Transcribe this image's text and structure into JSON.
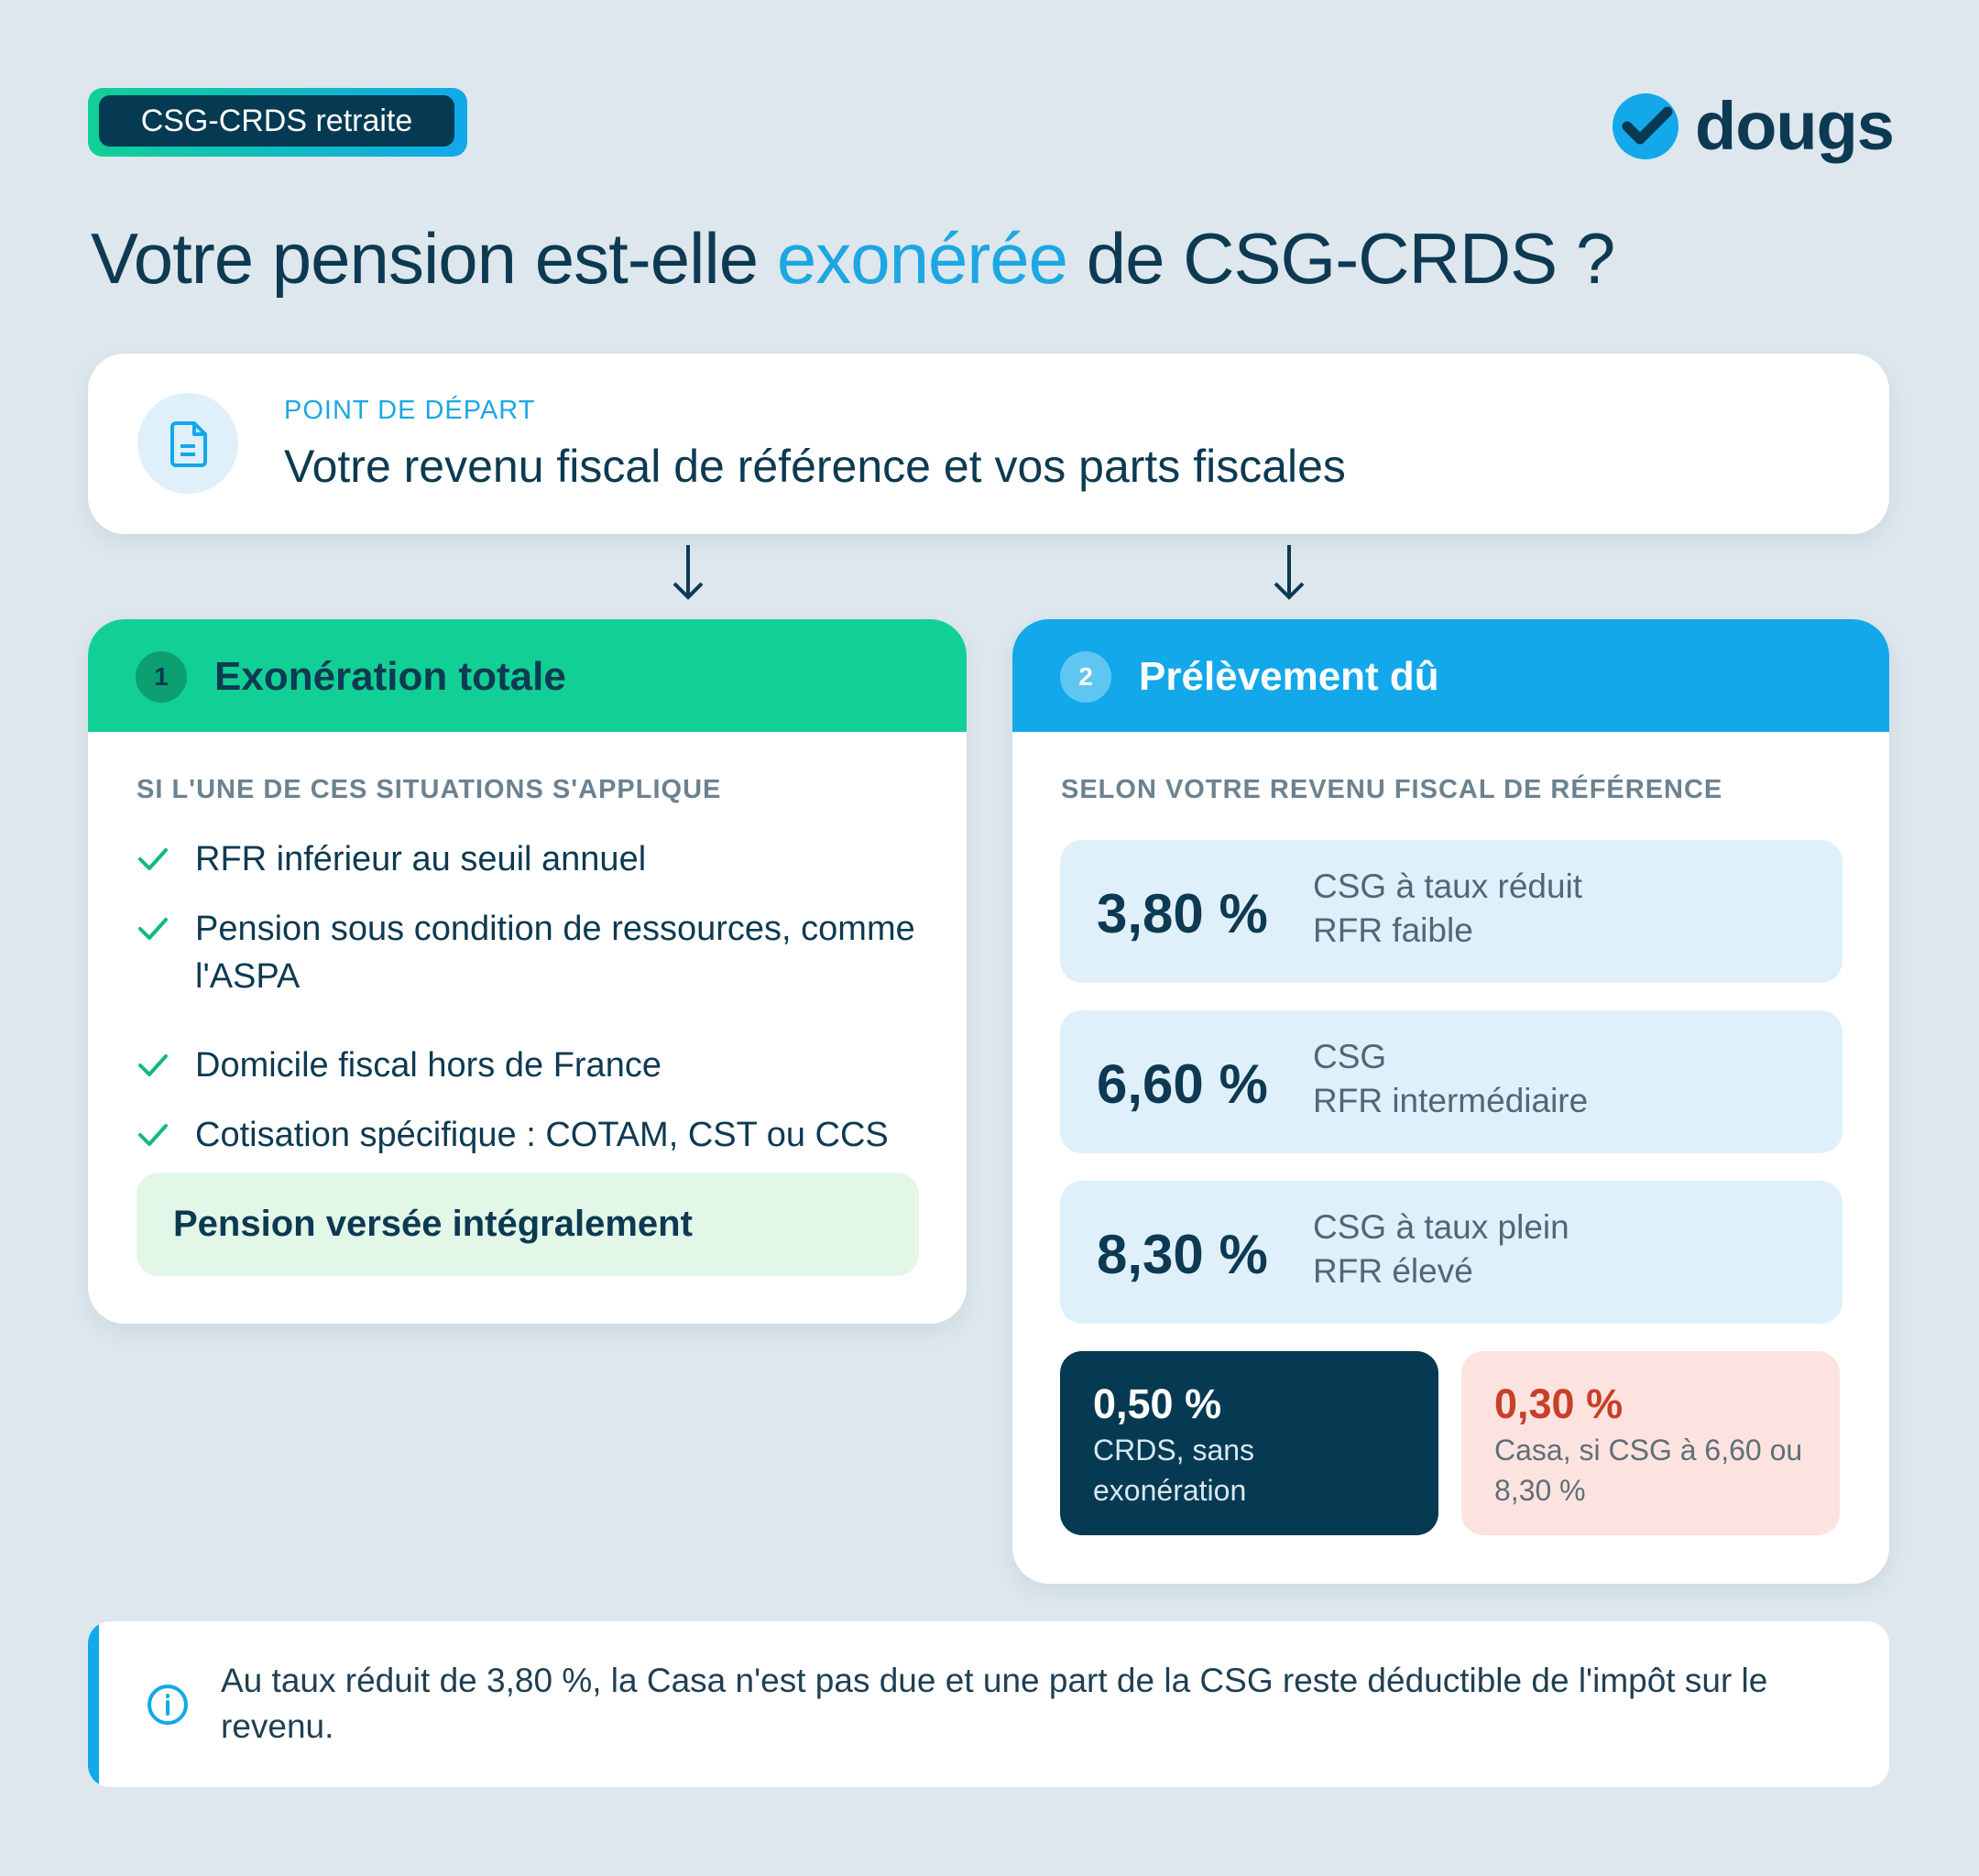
{
  "badge": "CSG-CRDS retraite",
  "logo": "dougs",
  "title": {
    "before": "Votre pension est-elle ",
    "highlight": "exonérée",
    "after": " de CSG-CRDS ?"
  },
  "start": {
    "label": "POINT DE DÉPART",
    "text": "Votre revenu fiscal de référence et vos parts fiscales"
  },
  "card1": {
    "number": "1",
    "title": "Exonération totale",
    "subtitle": "SI L'UNE DE CES SITUATIONS S'APPLIQUE",
    "items": [
      "RFR inférieur au seuil annuel",
      "Pension sous condition de ressources, comme l'ASPA",
      "Domicile fiscal hors de France",
      "Cotisation spécifique : COTAM, CST ou CCS"
    ],
    "footer": "Pension versée intégralement"
  },
  "card2": {
    "number": "2",
    "title": "Prélèvement dû",
    "subtitle": "SELON VOTRE REVENU FISCAL DE RÉFÉRENCE",
    "rates": [
      {
        "rate": "3,80 %",
        "line1": "CSG à taux réduit",
        "line2": "RFR faible"
      },
      {
        "rate": "6,60 %",
        "line1": "CSG",
        "line2": "RFR intermédiaire"
      },
      {
        "rate": "8,30 %",
        "line1": "CSG à taux plein",
        "line2": "RFR élevé"
      }
    ],
    "extras": [
      {
        "rate": "0,50 %",
        "text": "CRDS, sans exonération"
      },
      {
        "rate": "0,30 %",
        "text": "Casa, si CSG à 6,60 ou 8,30 %"
      }
    ]
  },
  "note": "Au taux réduit de 3,80 %, la Casa n'est pas due et une part de la CSG reste déductible de l'impôt sur le revenu."
}
